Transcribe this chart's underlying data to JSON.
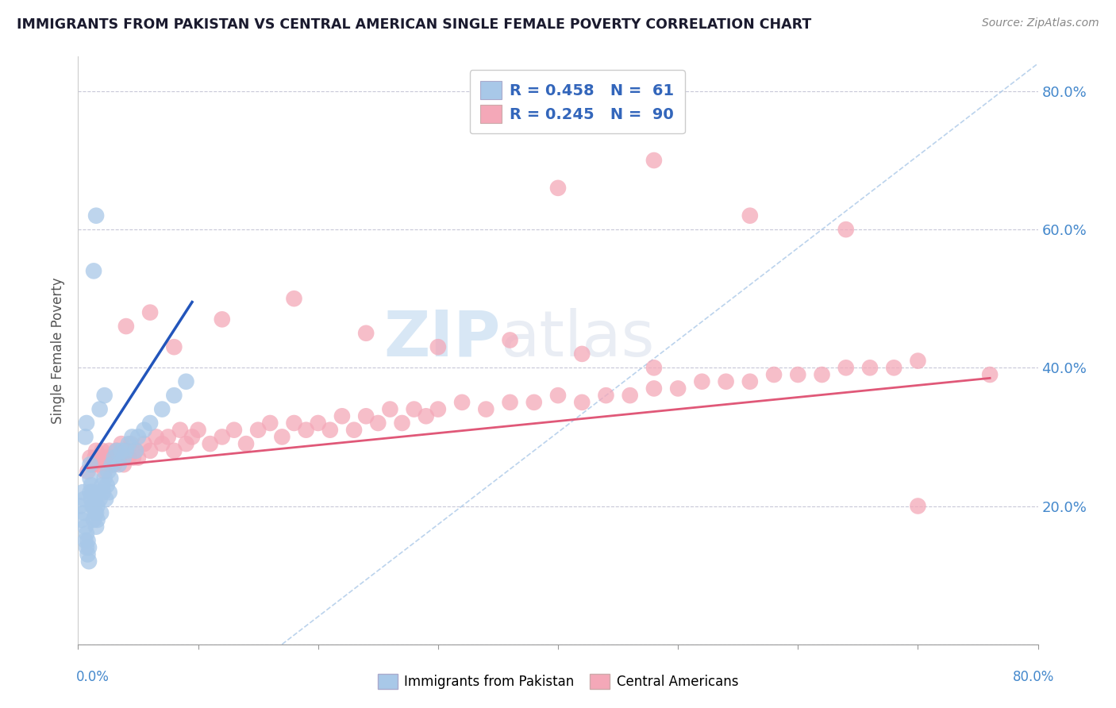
{
  "title": "IMMIGRANTS FROM PAKISTAN VS CENTRAL AMERICAN SINGLE FEMALE POVERTY CORRELATION CHART",
  "source": "Source: ZipAtlas.com",
  "ylabel": "Single Female Poverty",
  "y_ticks": [
    0.0,
    0.2,
    0.4,
    0.6,
    0.8
  ],
  "y_tick_labels": [
    "",
    "20.0%",
    "40.0%",
    "60.0%",
    "80.0%"
  ],
  "x_range": [
    0.0,
    0.8
  ],
  "y_range": [
    0.0,
    0.85
  ],
  "legend_r_pakistan": "R = 0.458",
  "legend_n_pakistan": "N =  61",
  "legend_r_central": "R = 0.245",
  "legend_n_central": "N =  90",
  "color_pakistan": "#a8c8e8",
  "color_central": "#f4a8b8",
  "color_pakistan_line": "#2255bb",
  "color_central_line": "#e05878",
  "background_color": "#ffffff",
  "pak_x": [
    0.002,
    0.003,
    0.004,
    0.005,
    0.005,
    0.006,
    0.006,
    0.007,
    0.007,
    0.008,
    0.008,
    0.009,
    0.009,
    0.01,
    0.01,
    0.01,
    0.011,
    0.011,
    0.012,
    0.012,
    0.013,
    0.013,
    0.014,
    0.014,
    0.015,
    0.015,
    0.016,
    0.016,
    0.017,
    0.018,
    0.019,
    0.02,
    0.021,
    0.022,
    0.023,
    0.024,
    0.025,
    0.026,
    0.027,
    0.028,
    0.03,
    0.032,
    0.034,
    0.036,
    0.038,
    0.04,
    0.042,
    0.045,
    0.048,
    0.05,
    0.055,
    0.06,
    0.07,
    0.08,
    0.09,
    0.013,
    0.015,
    0.006,
    0.007,
    0.018,
    0.022
  ],
  "pak_y": [
    0.2,
    0.18,
    0.22,
    0.19,
    0.21,
    0.15,
    0.17,
    0.14,
    0.16,
    0.13,
    0.15,
    0.12,
    0.14,
    0.22,
    0.24,
    0.26,
    0.21,
    0.23,
    0.2,
    0.22,
    0.18,
    0.2,
    0.19,
    0.21,
    0.17,
    0.19,
    0.18,
    0.2,
    0.22,
    0.21,
    0.19,
    0.23,
    0.22,
    0.24,
    0.21,
    0.23,
    0.25,
    0.22,
    0.24,
    0.26,
    0.27,
    0.28,
    0.26,
    0.28,
    0.27,
    0.28,
    0.29,
    0.3,
    0.28,
    0.3,
    0.31,
    0.32,
    0.34,
    0.36,
    0.38,
    0.54,
    0.62,
    0.3,
    0.32,
    0.34,
    0.36
  ],
  "ca_x": [
    0.008,
    0.01,
    0.012,
    0.014,
    0.015,
    0.016,
    0.018,
    0.02,
    0.022,
    0.024,
    0.025,
    0.026,
    0.028,
    0.03,
    0.032,
    0.034,
    0.036,
    0.038,
    0.04,
    0.042,
    0.044,
    0.046,
    0.048,
    0.05,
    0.055,
    0.06,
    0.065,
    0.07,
    0.075,
    0.08,
    0.085,
    0.09,
    0.095,
    0.1,
    0.11,
    0.12,
    0.13,
    0.14,
    0.15,
    0.16,
    0.17,
    0.18,
    0.19,
    0.2,
    0.21,
    0.22,
    0.23,
    0.24,
    0.25,
    0.26,
    0.27,
    0.28,
    0.29,
    0.3,
    0.32,
    0.34,
    0.36,
    0.38,
    0.4,
    0.42,
    0.44,
    0.46,
    0.48,
    0.5,
    0.52,
    0.54,
    0.56,
    0.58,
    0.6,
    0.62,
    0.64,
    0.66,
    0.68,
    0.7,
    0.04,
    0.06,
    0.08,
    0.12,
    0.18,
    0.24,
    0.3,
    0.36,
    0.42,
    0.48,
    0.4,
    0.48,
    0.56,
    0.64,
    0.7,
    0.76
  ],
  "ca_y": [
    0.25,
    0.27,
    0.26,
    0.27,
    0.28,
    0.26,
    0.27,
    0.28,
    0.25,
    0.27,
    0.26,
    0.28,
    0.27,
    0.26,
    0.28,
    0.27,
    0.29,
    0.26,
    0.28,
    0.27,
    0.29,
    0.27,
    0.28,
    0.27,
    0.29,
    0.28,
    0.3,
    0.29,
    0.3,
    0.28,
    0.31,
    0.29,
    0.3,
    0.31,
    0.29,
    0.3,
    0.31,
    0.29,
    0.31,
    0.32,
    0.3,
    0.32,
    0.31,
    0.32,
    0.31,
    0.33,
    0.31,
    0.33,
    0.32,
    0.34,
    0.32,
    0.34,
    0.33,
    0.34,
    0.35,
    0.34,
    0.35,
    0.35,
    0.36,
    0.35,
    0.36,
    0.36,
    0.37,
    0.37,
    0.38,
    0.38,
    0.38,
    0.39,
    0.39,
    0.39,
    0.4,
    0.4,
    0.4,
    0.41,
    0.46,
    0.48,
    0.43,
    0.47,
    0.5,
    0.45,
    0.43,
    0.44,
    0.42,
    0.4,
    0.66,
    0.7,
    0.62,
    0.6,
    0.2,
    0.39
  ],
  "pak_line_x": [
    0.002,
    0.095
  ],
  "pak_line_y": [
    0.245,
    0.495
  ],
  "ca_line_x": [
    0.008,
    0.76
  ],
  "ca_line_y": [
    0.255,
    0.385
  ],
  "dash_line_x": [
    0.17,
    0.8
  ],
  "dash_line_y": [
    0.0,
    0.84
  ]
}
